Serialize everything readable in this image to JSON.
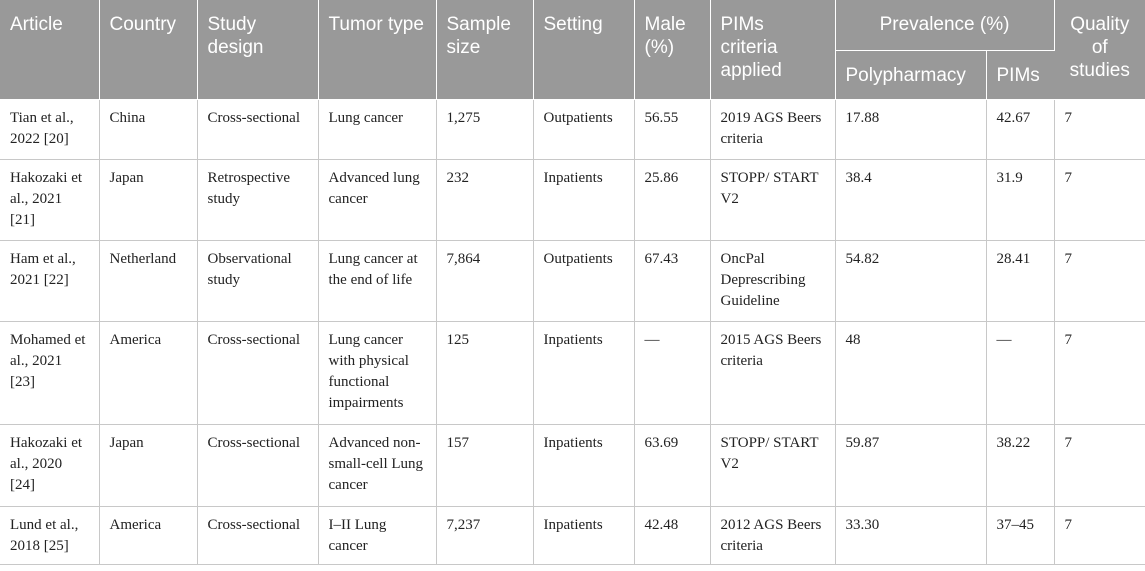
{
  "header": {
    "article": "Article",
    "country": "Country",
    "study_design": "Study design",
    "tumor_type": "Tumor type",
    "sample_size": "Sample size",
    "setting": "Setting",
    "male": "Male (%)",
    "pims_criteria": "PIMs criteria applied",
    "prevalence": "Prevalence (%)",
    "polypharmacy": "Polypharmacy",
    "pims": "PIMs",
    "quality": "Quality of studies"
  },
  "rows": [
    {
      "article": "Tian et al., 2022 [20]",
      "country": "China",
      "design": "Cross-sectional",
      "tumor": "Lung cancer",
      "sample": "1,275",
      "setting": "Outpatients",
      "male": "56.55",
      "criteria": "2019 AGS Beers criteria",
      "poly": "17.88",
      "pims": "42.67",
      "quality": "7"
    },
    {
      "article": "Hakozaki et al., 2021 [21]",
      "country": "Japan",
      "design": "Retrospective study",
      "tumor": "Advanced lung cancer",
      "sample": "232",
      "setting": "Inpatients",
      "male": "25.86",
      "criteria": "STOPP/ START V2",
      "poly": "38.4",
      "pims": "31.9",
      "quality": "7"
    },
    {
      "article": "Ham et al., 2021 [22]",
      "country": "Netherland",
      "design": "Observational study",
      "tumor": "Lung cancer at the end of life",
      "sample": "7,864",
      "setting": "Outpatients",
      "male": "67.43",
      "criteria": "OncPal Deprescribing Guideline",
      "poly": "54.82",
      "pims": "28.41",
      "quality": "7"
    },
    {
      "article": "Mohamed et al., 2021 [23]",
      "country": "America",
      "design": "Cross-sectional",
      "tumor": "Lung cancer with physical functional impairments",
      "sample": "125",
      "setting": "Inpatients",
      "male": "—",
      "criteria": "2015 AGS Beers criteria",
      "poly": "48",
      "pims": "—",
      "quality": "7"
    },
    {
      "article": "Hakozaki et al., 2020 [24]",
      "country": "Japan",
      "design": "Cross-sectional",
      "tumor": "Advanced non-small-cell Lung cancer",
      "sample": "157",
      "setting": "Inpatients",
      "male": "63.69",
      "criteria": "STOPP/ START V2",
      "poly": "59.87",
      "pims": "38.22",
      "quality": "7"
    },
    {
      "article": "Lund et al., 2018 [25]",
      "country": "America",
      "design": "Cross-sectional",
      "tumor": "I–II Lung cancer",
      "sample": "7,237",
      "setting": "Inpatients",
      "male": "42.48",
      "criteria": "2012 AGS Beers criteria",
      "poly": "33.30",
      "pims": "37–45",
      "quality": "7"
    }
  ]
}
